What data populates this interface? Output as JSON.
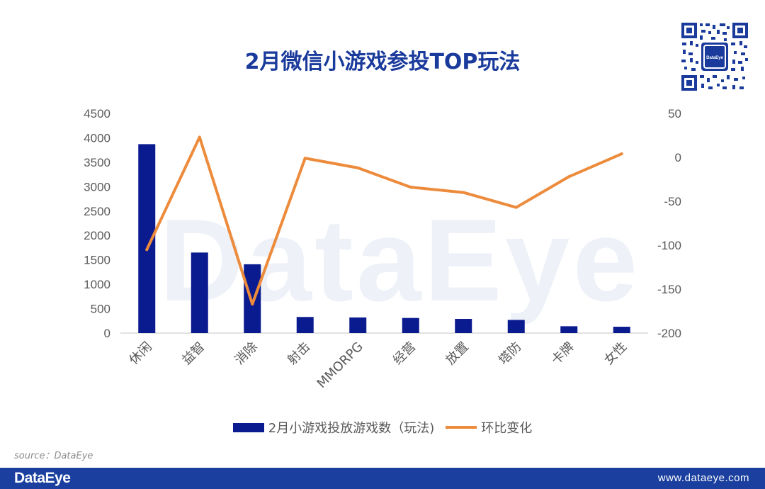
{
  "chart_data": {
    "type": "bar",
    "title": "2月微信小游戏参投TOP玩法",
    "categories": [
      "休闲",
      "益智",
      "消除",
      "射击",
      "MMORPG",
      "经营",
      "放置",
      "塔防",
      "卡牌",
      "女性"
    ],
    "series": [
      {
        "name": "2月小游戏投放游戏数（玩法)",
        "type": "bar",
        "axis": "left",
        "values": [
          3870,
          1650,
          1410,
          330,
          320,
          310,
          290,
          270,
          140,
          130
        ]
      },
      {
        "name": "环比变化",
        "type": "line",
        "axis": "right",
        "values": [
          -105,
          23,
          -167,
          -1,
          -12,
          -34,
          -40,
          -57,
          -22,
          4
        ]
      }
    ],
    "y_left": {
      "min": 0,
      "max": 4500,
      "ticks": [
        "0",
        "500",
        "1000",
        "1500",
        "2000",
        "2500",
        "3000",
        "3500",
        "4000",
        "4500"
      ]
    },
    "y_right": {
      "min": -200,
      "max": 50,
      "ticks": [
        "-200",
        "-150",
        "-100",
        "-50",
        "0",
        "50"
      ]
    },
    "grid": false,
    "legend_position": "bottom",
    "colors": {
      "bar": "#0a1a8f",
      "line": "#ed8b3c"
    }
  },
  "watermark": "DataEye",
  "source": "source：DataEye",
  "footer": {
    "brand": "DataEye",
    "url": "www.dataeye.com"
  },
  "qr_center_label": "DataEye"
}
